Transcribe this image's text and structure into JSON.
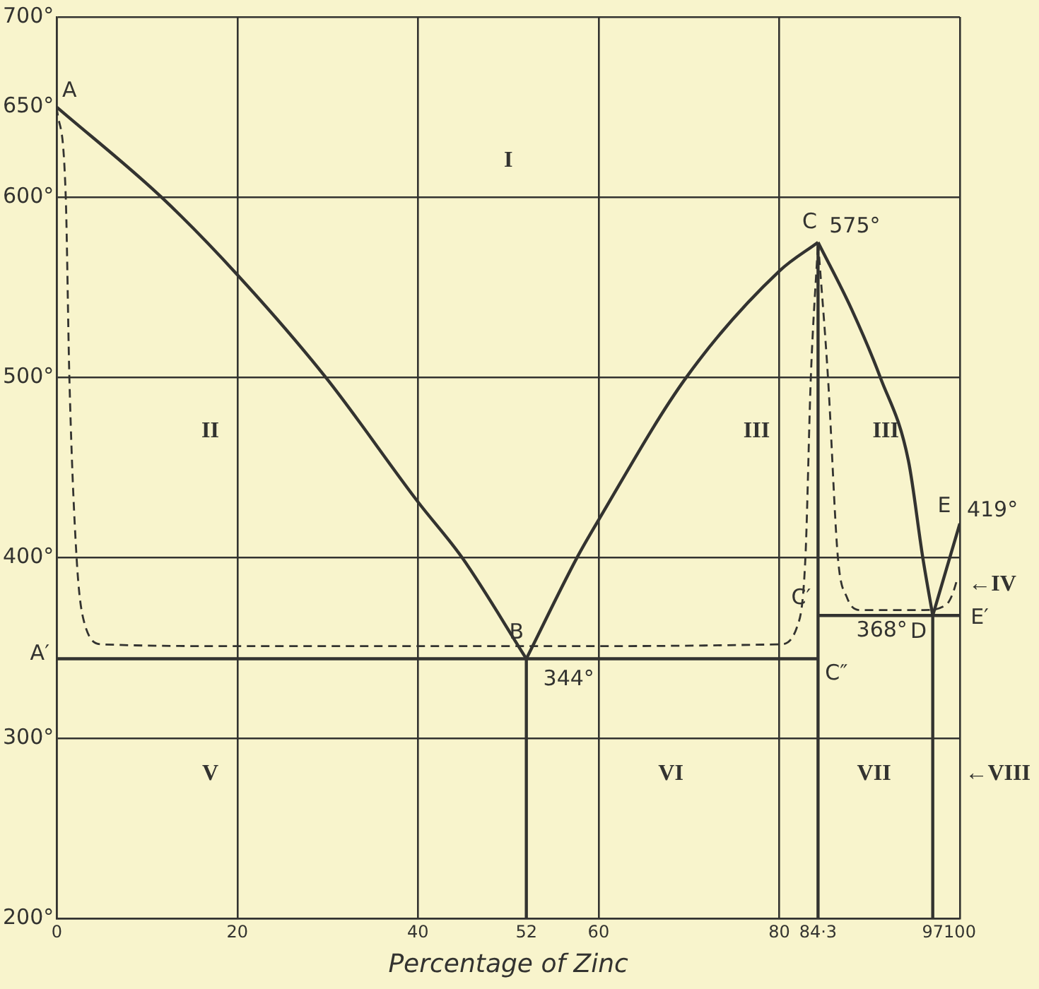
{
  "chart_data": {
    "type": "line",
    "xlabel": "Percentage of Zinc",
    "xlim": [
      0,
      100
    ],
    "ylim": [
      200,
      700
    ],
    "xticks": [
      0,
      20,
      40,
      52,
      60,
      80,
      {
        "value": 84.3,
        "label": "84·3"
      },
      97,
      100
    ],
    "yticks": [
      {
        "value": 200,
        "label": "200°"
      },
      {
        "value": 300,
        "label": "300°"
      },
      {
        "value": 400,
        "label": "400°"
      },
      {
        "value": 500,
        "label": "500°"
      },
      {
        "value": 600,
        "label": "600°"
      },
      {
        "value": 650,
        "label": "650°"
      },
      {
        "value": 700,
        "label": "700°"
      }
    ],
    "grid": true,
    "legend": false,
    "marker": "none",
    "series": [
      {
        "color": "#333330",
        "x": [
          0,
          11.6,
          20,
          29.8,
          40,
          44.9,
          52
        ],
        "values": [
          650,
          600,
          557,
          500,
          431,
          400,
          344
        ]
      },
      {
        "color": "#333330",
        "x": [
          52,
          57.6,
          60,
          69.7,
          80,
          84.3
        ],
        "values": [
          344,
          400,
          421,
          500,
          559,
          575
        ]
      },
      {
        "color": "#333330",
        "x": [
          84.3,
          88,
          91.2,
          94.3,
          95.9,
          97
        ],
        "values": [
          575,
          538,
          500,
          454,
          400,
          368
        ]
      },
      {
        "color": "#333330",
        "x": [
          97,
          100
        ],
        "values": [
          368,
          419
        ]
      },
      {
        "color": "#333330",
        "line_style": "dashed",
        "x": [
          0,
          1,
          1.4,
          2.2,
          3,
          5,
          20,
          40,
          60,
          80,
          82,
          82.9,
          83.5,
          84.3
        ],
        "values": [
          650,
          600,
          500,
          400,
          365,
          352,
          351,
          351,
          351,
          352,
          362,
          400,
          500,
          575
        ]
      },
      {
        "color": "#333330",
        "line_style": "dashed",
        "x": [
          84.3,
          85.4,
          86.5,
          87.5,
          89,
          96,
          98.5,
          99.2,
          99.7
        ],
        "values": [
          575,
          500,
          400,
          378,
          371,
          371,
          374,
          380,
          388
        ]
      },
      {
        "color": "#333330",
        "x": [
          0,
          84.3
        ],
        "values": [
          344,
          344
        ]
      },
      {
        "color": "#333330",
        "x": [
          84.3,
          100
        ],
        "values": [
          368,
          368
        ]
      },
      {
        "color": "#333330",
        "x": [
          52,
          52
        ],
        "values": [
          200,
          344
        ]
      },
      {
        "color": "#333330",
        "x": [
          84.3,
          84.3
        ],
        "values": [
          200,
          575
        ]
      },
      {
        "color": "#333330",
        "x": [
          97,
          97
        ],
        "values": [
          200,
          368
        ]
      }
    ],
    "annotations": [
      {
        "text": "A",
        "x": 0,
        "y": 650
      },
      {
        "text": "B",
        "x": 52,
        "y": 344
      },
      {
        "text": "C",
        "x": 84.3,
        "y": 575
      },
      {
        "text": "575°",
        "x": 84.3,
        "y": 575
      },
      {
        "text": "C′",
        "x": 84.3,
        "y": 368
      },
      {
        "text": "C″",
        "x": 84.3,
        "y": 344
      },
      {
        "text": "A′",
        "x": 0,
        "y": 344
      },
      {
        "text": "344°",
        "x": 52,
        "y": 344
      },
      {
        "text": "368°",
        "x": 97,
        "y": 368
      },
      {
        "text": "D",
        "x": 97,
        "y": 368
      },
      {
        "text": "E",
        "x": 100,
        "y": 419
      },
      {
        "text": "419°",
        "x": 100,
        "y": 419
      },
      {
        "text": "E′",
        "x": 100,
        "y": 368
      },
      "I",
      "II",
      "III",
      "III",
      "←IV",
      "V",
      "VI",
      "VII",
      "←VIII"
    ]
  }
}
